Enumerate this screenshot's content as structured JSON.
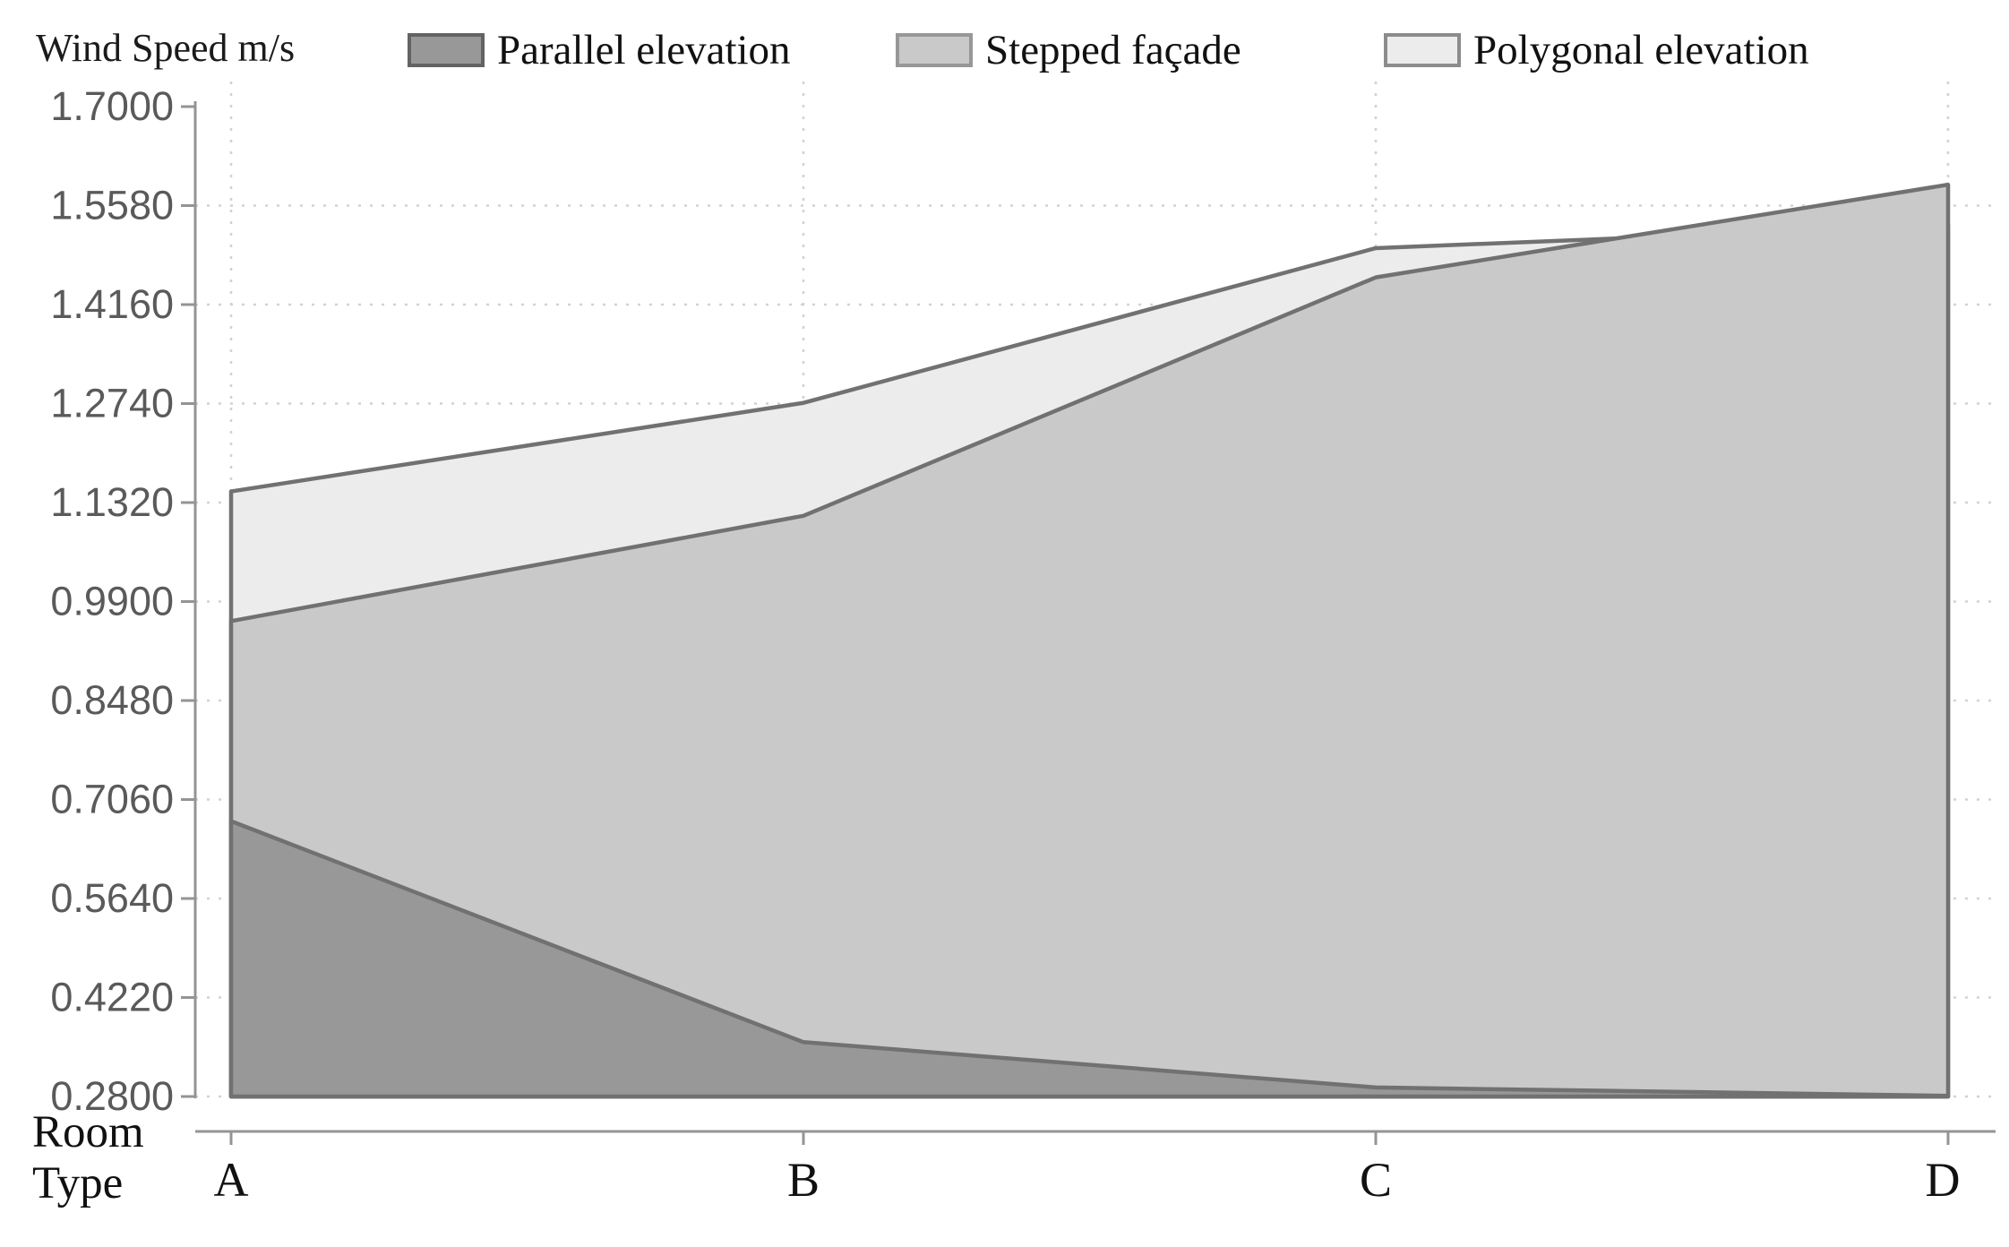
{
  "header": {
    "y_axis_title": "Wind Speed m/s",
    "x_axis_title_line1": "Room",
    "x_axis_title_line2": "Type"
  },
  "legend": [
    {
      "label": "Parallel elevation",
      "fill": "#989898",
      "border": "#636363"
    },
    {
      "label": "Stepped façade",
      "fill": "#c9c9c9",
      "border": "#979797"
    },
    {
      "label": "Polygonal elevation",
      "fill": "#ececec",
      "border": "#8c8c8c"
    }
  ],
  "chart_data": {
    "type": "area",
    "title": "",
    "xlabel": "Room Type",
    "ylabel": "Wind Speed m/s",
    "categories": [
      "A",
      "B",
      "C",
      "D"
    ],
    "series": [
      {
        "name": "Polygonal elevation",
        "values": [
          1.148,
          1.275,
          1.497,
          1.53
        ],
        "fill": "#ececec"
      },
      {
        "name": "Stepped façade",
        "values": [
          0.962,
          1.113,
          1.455,
          1.588
        ],
        "fill": "#c9c9c9"
      },
      {
        "name": "Parallel elevation",
        "values": [
          0.675,
          0.358,
          0.293,
          0.281
        ],
        "fill": "#989898"
      }
    ],
    "legend_order": [
      "Parallel elevation",
      "Stepped façade",
      "Polygonal elevation"
    ],
    "y_ticks": [
      "1.7000",
      "1.5580",
      "1.4160",
      "1.2740",
      "1.1320",
      "0.9900",
      "0.8480",
      "0.7060",
      "0.5640",
      "0.4220",
      "0.2800"
    ],
    "ylim": [
      0.28,
      1.7
    ],
    "grid": true,
    "legend_position": "top",
    "line_color": "#717171",
    "axis_color": "#949494",
    "grid_color": "#d2d2d2",
    "tick_label_color": "#5a5a5a",
    "category_label_color": "#111111"
  }
}
